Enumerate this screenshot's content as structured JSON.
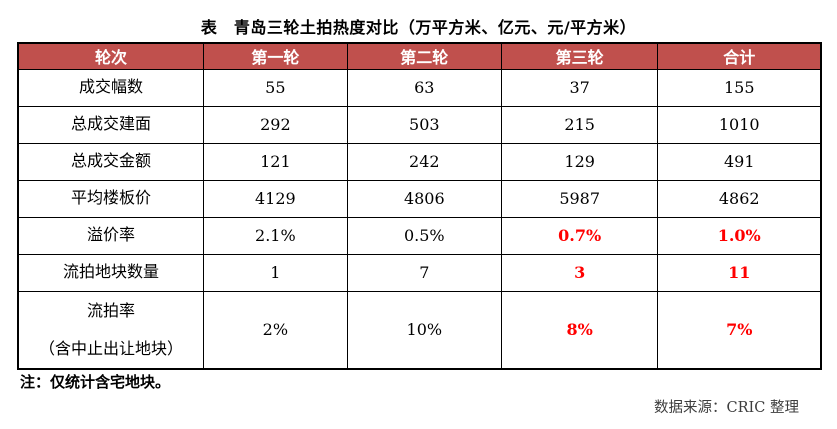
{
  "title": "表　青岛三轮土拍热度对比（万平方米、亿元、元/平方米）",
  "table": {
    "header": [
      "轮次",
      "第一轮",
      "第二轮",
      "第三轮",
      "合计"
    ],
    "rows": [
      {
        "label_lines": [
          "成交幅数"
        ],
        "values": [
          "55",
          "63",
          "37",
          "155"
        ],
        "red": [
          false,
          false,
          false,
          false
        ],
        "tall": false
      },
      {
        "label_lines": [
          "总成交建面"
        ],
        "values": [
          "292",
          "503",
          "215",
          "1010"
        ],
        "red": [
          false,
          false,
          false,
          false
        ],
        "tall": false
      },
      {
        "label_lines": [
          "总成交金额"
        ],
        "values": [
          "121",
          "242",
          "129",
          "491"
        ],
        "red": [
          false,
          false,
          false,
          false
        ],
        "tall": false
      },
      {
        "label_lines": [
          "平均楼板价"
        ],
        "values": [
          "4129",
          "4806",
          "5987",
          "4862"
        ],
        "red": [
          false,
          false,
          false,
          false
        ],
        "tall": false
      },
      {
        "label_lines": [
          "溢价率"
        ],
        "values": [
          "2.1%",
          "0.5%",
          "0.7%",
          "1.0%"
        ],
        "red": [
          false,
          false,
          true,
          true
        ],
        "tall": false
      },
      {
        "label_lines": [
          "流拍地块数量"
        ],
        "values": [
          "1",
          "7",
          "3",
          "11"
        ],
        "red": [
          false,
          false,
          true,
          true
        ],
        "tall": false
      },
      {
        "label_lines": [
          "流拍率",
          "（含中止出让地块）"
        ],
        "values": [
          "2%",
          "10%",
          "8%",
          "7%"
        ],
        "red": [
          false,
          false,
          true,
          true
        ],
        "tall": true
      }
    ]
  },
  "note": "注：仅统计含宅地块。",
  "source": "数据来源：CRIC 整理",
  "colors": {
    "header_bg": "#C0504D",
    "header_text": "#FFFFFF",
    "highlight": "#FF0000",
    "border": "#000000"
  },
  "chart_data": {
    "type": "table",
    "title": "表　青岛三轮土拍热度对比（万平方米、亿元、元/平方米）",
    "columns": [
      "轮次",
      "第一轮",
      "第二轮",
      "第三轮",
      "合计"
    ],
    "rows": [
      [
        "成交幅数",
        "55",
        "63",
        "37",
        "155"
      ],
      [
        "总成交建面",
        "292",
        "503",
        "215",
        "1010"
      ],
      [
        "总成交金额",
        "121",
        "242",
        "129",
        "491"
      ],
      [
        "平均楼板价",
        "4129",
        "4806",
        "5987",
        "4862"
      ],
      [
        "溢价率",
        "2.1%",
        "0.5%",
        "0.7%",
        "1.0%"
      ],
      [
        "流拍地块数量",
        "1",
        "7",
        "3",
        "11"
      ],
      [
        "流拍率（含中止出让地块）",
        "2%",
        "10%",
        "8%",
        "7%"
      ]
    ]
  }
}
